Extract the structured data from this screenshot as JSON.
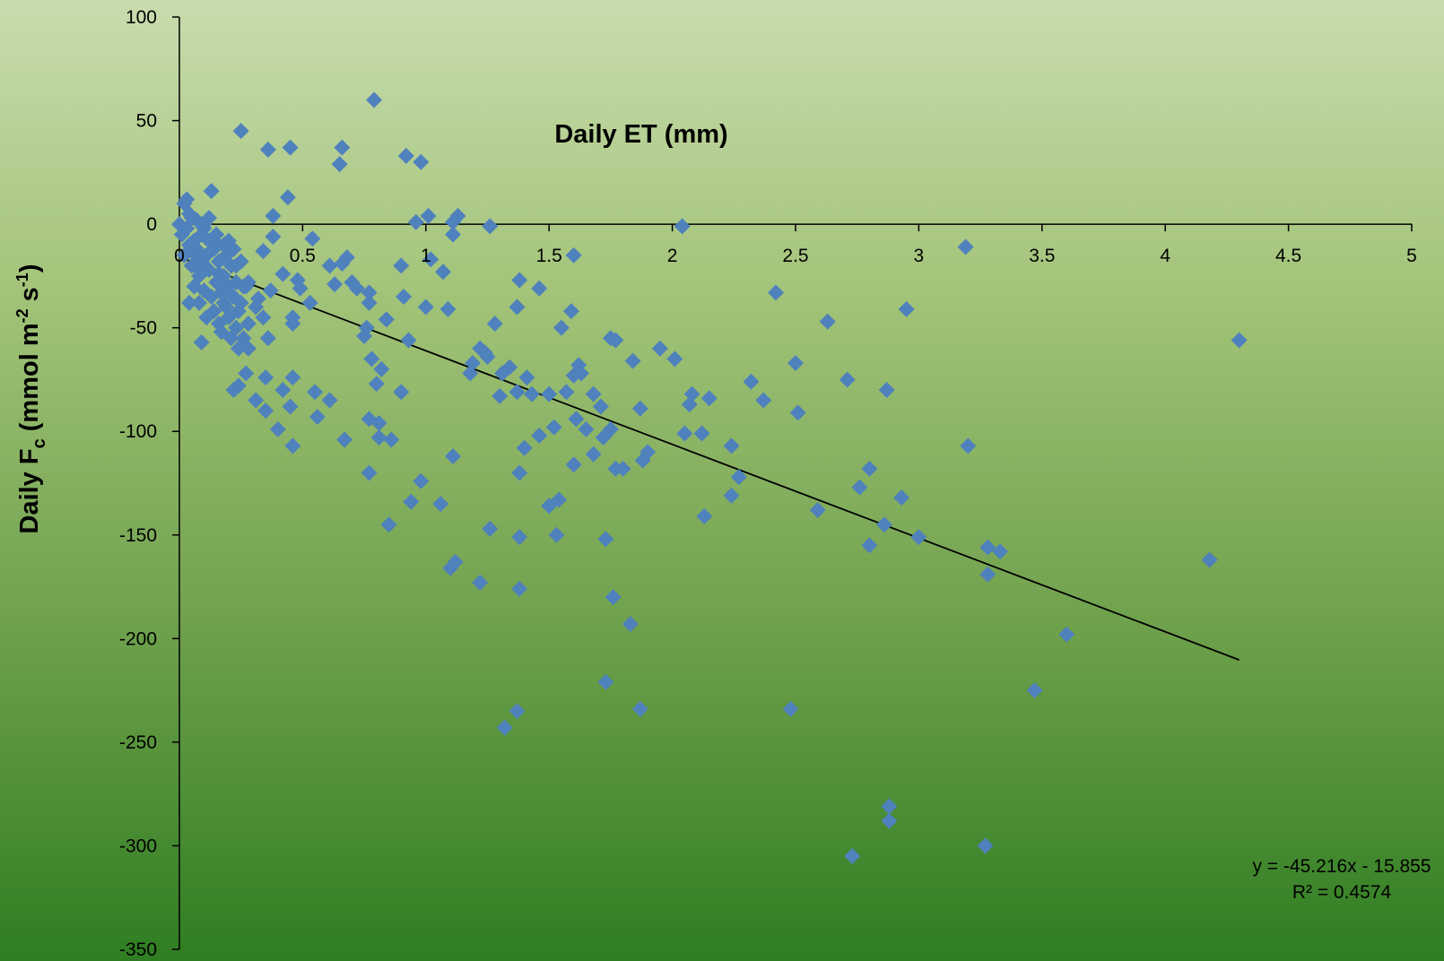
{
  "chart_data": {
    "type": "scatter",
    "title": "",
    "xlabel": "Daily ET (mm)",
    "ylabel": {
      "prefix": "Daily  F",
      "sub": "c",
      "units": " (mmol m",
      "sup1": "-2",
      "mid": " s",
      "sup2": "-1",
      "suffix": ")"
    },
    "xlim": [
      0,
      5
    ],
    "ylim": [
      -350,
      100
    ],
    "x_ticks": [
      "0",
      "0.5",
      "1",
      "1.5",
      "2",
      "2.5",
      "3",
      "3.5",
      "4",
      "4.5",
      "5"
    ],
    "y_ticks": [
      "100",
      "50",
      "0",
      "-50",
      "-100",
      "-150",
      "-200",
      "-250",
      "-300",
      "-350"
    ],
    "marker_color": "#4f81bd",
    "grid": false,
    "series": [
      {
        "marker": "diamond",
        "points": [
          [
            0.0,
            0
          ],
          [
            0.01,
            -5
          ],
          [
            0.02,
            10
          ],
          [
            0.02,
            -15
          ],
          [
            0.03,
            12
          ],
          [
            0.03,
            -2
          ],
          [
            0.04,
            5
          ],
          [
            0.04,
            -10
          ],
          [
            0.05,
            -20
          ],
          [
            0.05,
            3
          ],
          [
            0.06,
            -8
          ],
          [
            0.06,
            -30
          ],
          [
            0.07,
            -12
          ],
          [
            0.07,
            2
          ],
          [
            0.08,
            -25
          ],
          [
            0.08,
            -38
          ],
          [
            0.09,
            -5
          ],
          [
            0.09,
            -18
          ],
          [
            0.1,
            -32
          ],
          [
            0.1,
            0
          ],
          [
            0.11,
            -15
          ],
          [
            0.11,
            -45
          ],
          [
            0.12,
            -22
          ],
          [
            0.12,
            -8
          ],
          [
            0.13,
            16
          ],
          [
            0.13,
            -35
          ],
          [
            0.14,
            -12
          ],
          [
            0.14,
            -42
          ],
          [
            0.15,
            -28
          ],
          [
            0.15,
            -5
          ],
          [
            0.16,
            -48
          ],
          [
            0.16,
            -18
          ],
          [
            0.17,
            -33
          ],
          [
            0.17,
            -52
          ],
          [
            0.18,
            -10
          ],
          [
            0.18,
            -25
          ],
          [
            0.19,
            -40
          ],
          [
            0.19,
            -15
          ],
          [
            0.2,
            -30
          ],
          [
            0.2,
            -45
          ],
          [
            0.21,
            -20
          ],
          [
            0.21,
            -55
          ],
          [
            0.22,
            -35
          ],
          [
            0.22,
            -12
          ],
          [
            0.23,
            -50
          ],
          [
            0.23,
            -28
          ],
          [
            0.24,
            -42
          ],
          [
            0.24,
            -60
          ],
          [
            0.25,
            -38
          ],
          [
            0.25,
            -18
          ],
          [
            0.26,
            -55
          ],
          [
            0.27,
            -72
          ],
          [
            0.27,
            -30
          ],
          [
            0.28,
            -48
          ],
          [
            0.28,
            -60
          ],
          [
            0.22,
            -80
          ],
          [
            0.24,
            -78
          ],
          [
            0.09,
            -57
          ],
          [
            0.04,
            -38
          ],
          [
            0.08,
            -22
          ],
          [
            0.06,
            -14
          ],
          [
            0.12,
            3
          ],
          [
            0.1,
            -2
          ],
          [
            0.14,
            -8
          ],
          [
            0.18,
            -38
          ],
          [
            0.16,
            -24
          ],
          [
            0.2,
            -8
          ],
          [
            0.23,
            -20
          ],
          [
            0.26,
            -30
          ],
          [
            0.28,
            -28
          ],
          [
            0.25,
            45
          ],
          [
            0.36,
            36
          ],
          [
            0.45,
            37
          ],
          [
            0.44,
            13
          ],
          [
            0.38,
            4
          ],
          [
            0.65,
            29
          ],
          [
            0.66,
            37
          ],
          [
            0.79,
            60
          ],
          [
            0.92,
            33
          ],
          [
            0.98,
            30
          ],
          [
            0.96,
            1
          ],
          [
            1.01,
            4
          ],
          [
            1.11,
            1
          ],
          [
            1.13,
            4
          ],
          [
            1.26,
            -1
          ],
          [
            2.04,
            -1
          ],
          [
            0.31,
            -40
          ],
          [
            0.32,
            -36
          ],
          [
            0.34,
            -45
          ],
          [
            0.34,
            -13
          ],
          [
            0.36,
            -55
          ],
          [
            0.37,
            -32
          ],
          [
            0.38,
            -6
          ],
          [
            0.42,
            -24
          ],
          [
            0.46,
            -45
          ],
          [
            0.46,
            -48
          ],
          [
            0.48,
            -27
          ],
          [
            0.49,
            -31
          ],
          [
            0.53,
            -38
          ],
          [
            0.54,
            -7
          ],
          [
            0.61,
            -20
          ],
          [
            0.63,
            -29
          ],
          [
            0.66,
            -19
          ],
          [
            0.68,
            -16
          ],
          [
            0.7,
            -28
          ],
          [
            0.72,
            -31
          ],
          [
            0.75,
            -54
          ],
          [
            0.76,
            -50
          ],
          [
            0.77,
            -38
          ],
          [
            0.77,
            -33
          ],
          [
            0.31,
            -85
          ],
          [
            0.35,
            -90
          ],
          [
            0.35,
            -74
          ],
          [
            0.4,
            -99
          ],
          [
            0.42,
            -80
          ],
          [
            0.45,
            -88
          ],
          [
            0.46,
            -74
          ],
          [
            0.46,
            -107
          ],
          [
            0.55,
            -81
          ],
          [
            0.56,
            -93
          ],
          [
            0.61,
            -85
          ],
          [
            0.67,
            -104
          ],
          [
            0.78,
            -65
          ],
          [
            0.8,
            -77
          ],
          [
            0.81,
            -103
          ],
          [
            0.81,
            -96
          ],
          [
            0.82,
            -70
          ],
          [
            0.84,
            -46
          ],
          [
            0.85,
            -145
          ],
          [
            0.86,
            -104
          ],
          [
            0.77,
            -94
          ],
          [
            0.77,
            -120
          ],
          [
            0.9,
            -20
          ],
          [
            0.9,
            -81
          ],
          [
            0.91,
            -35
          ],
          [
            0.93,
            -56
          ],
          [
            0.94,
            -134
          ],
          [
            0.98,
            -124
          ],
          [
            1.0,
            -40
          ],
          [
            1.02,
            -17
          ],
          [
            1.06,
            -135
          ],
          [
            1.07,
            -23
          ],
          [
            1.09,
            -41
          ],
          [
            1.1,
            -166
          ],
          [
            1.11,
            -5
          ],
          [
            1.11,
            -112
          ],
          [
            1.12,
            -163
          ],
          [
            1.18,
            -72
          ],
          [
            1.19,
            -67
          ],
          [
            1.22,
            -60
          ],
          [
            1.22,
            -173
          ],
          [
            1.24,
            -62
          ],
          [
            1.25,
            -64
          ],
          [
            1.26,
            -147
          ],
          [
            1.28,
            -48
          ],
          [
            1.3,
            -83
          ],
          [
            1.31,
            -72
          ],
          [
            1.32,
            -243
          ],
          [
            1.34,
            -69
          ],
          [
            1.37,
            -81
          ],
          [
            1.37,
            -40
          ],
          [
            1.37,
            -235
          ],
          [
            1.38,
            -27
          ],
          [
            1.38,
            -151
          ],
          [
            1.38,
            -176
          ],
          [
            1.38,
            -120
          ],
          [
            1.4,
            -108
          ],
          [
            1.41,
            -74
          ],
          [
            1.43,
            -82
          ],
          [
            1.46,
            -31
          ],
          [
            1.46,
            -102
          ],
          [
            1.5,
            -82
          ],
          [
            1.5,
            -136
          ],
          [
            1.52,
            -98
          ],
          [
            1.53,
            -150
          ],
          [
            1.54,
            -133
          ],
          [
            1.55,
            -50
          ],
          [
            1.57,
            -81
          ],
          [
            1.59,
            -42
          ],
          [
            1.6,
            -116
          ],
          [
            1.6,
            -73
          ],
          [
            1.6,
            -15
          ],
          [
            1.61,
            -94
          ],
          [
            1.62,
            -68
          ],
          [
            1.63,
            -72
          ],
          [
            1.65,
            -99
          ],
          [
            1.68,
            -82
          ],
          [
            1.68,
            -111
          ],
          [
            1.71,
            -88
          ],
          [
            1.72,
            -103
          ],
          [
            1.73,
            -152
          ],
          [
            1.73,
            -221
          ],
          [
            1.75,
            -99
          ],
          [
            1.75,
            -55
          ],
          [
            1.76,
            -180
          ],
          [
            1.77,
            -56
          ],
          [
            1.77,
            -118
          ],
          [
            1.8,
            -118
          ],
          [
            1.83,
            -193
          ],
          [
            1.84,
            -66
          ],
          [
            1.87,
            -89
          ],
          [
            1.87,
            -234
          ],
          [
            1.88,
            -114
          ],
          [
            1.9,
            -110
          ],
          [
            1.95,
            -60
          ],
          [
            2.01,
            -65
          ],
          [
            2.05,
            -101
          ],
          [
            2.07,
            -87
          ],
          [
            2.08,
            -82
          ],
          [
            2.12,
            -101
          ],
          [
            2.13,
            -141
          ],
          [
            2.15,
            -84
          ],
          [
            2.24,
            -131
          ],
          [
            2.24,
            -107
          ],
          [
            2.27,
            -122
          ],
          [
            2.32,
            -76
          ],
          [
            2.37,
            -85
          ],
          [
            2.42,
            -33
          ],
          [
            2.48,
            -234
          ],
          [
            2.5,
            -67
          ],
          [
            2.51,
            -91
          ],
          [
            2.59,
            -138
          ],
          [
            2.63,
            -47
          ],
          [
            2.71,
            -75
          ],
          [
            2.73,
            -305
          ],
          [
            2.76,
            -127
          ],
          [
            2.8,
            -118
          ],
          [
            2.8,
            -155
          ],
          [
            2.86,
            -145
          ],
          [
            2.87,
            -80
          ],
          [
            2.88,
            -281
          ],
          [
            2.88,
            -288
          ],
          [
            2.93,
            -132
          ],
          [
            2.95,
            -41
          ],
          [
            3.0,
            -151
          ],
          [
            3.19,
            -11
          ],
          [
            3.2,
            -107
          ],
          [
            3.27,
            -300
          ],
          [
            3.28,
            -156
          ],
          [
            3.28,
            -169
          ],
          [
            3.33,
            -158
          ],
          [
            3.47,
            -225
          ],
          [
            3.6,
            -198
          ],
          [
            4.18,
            -162
          ],
          [
            4.3,
            -56
          ]
        ]
      }
    ],
    "trendline": {
      "slope": -45.216,
      "intercept": -15.855,
      "x_range": [
        0,
        4.3
      ],
      "color": "#000000"
    },
    "equation": "y = -45.216x - 15.855",
    "r_squared": "R² = 0.4574"
  }
}
